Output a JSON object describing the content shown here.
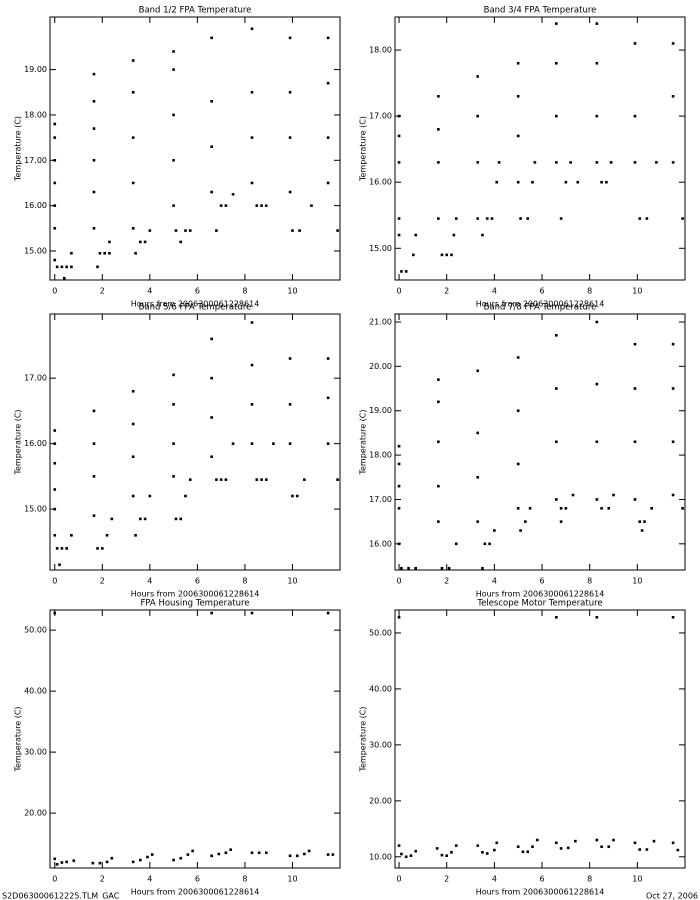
{
  "chart_data": [
    {
      "type": "scatter",
      "title": "Band 1/2 FPA Temperature",
      "xlabel": "Hours from 2006300061228614",
      "ylabel": "Temperature (C)",
      "color": "#000000",
      "xlim": [
        -0.2,
        12
      ],
      "xticks": [
        0,
        2,
        4,
        6,
        8,
        10
      ],
      "ylim": [
        14.36,
        20.16
      ],
      "yticks": [
        {
          "value": 15,
          "label": "15.00"
        },
        {
          "value": 16,
          "label": "16.00"
        },
        {
          "value": 17,
          "label": "17.00"
        },
        {
          "value": 18,
          "label": "18.00"
        },
        {
          "value": 19,
          "label": "19.00"
        }
      ],
      "x": [
        0,
        0,
        0,
        0,
        0,
        0,
        0,
        0.1,
        0.3,
        0.5,
        0.7,
        0.4,
        0.7,
        1.65,
        1.65,
        1.65,
        1.65,
        1.65,
        1.65,
        1.8,
        1.9,
        2.1,
        2.3,
        2.3,
        3.3,
        3.3,
        3.3,
        3.3,
        3.3,
        3.4,
        3.6,
        3.8,
        4.0,
        5,
        5,
        5,
        5,
        5,
        5.1,
        5.3,
        5.5,
        5.7,
        6.6,
        6.6,
        6.6,
        6.6,
        6.8,
        7.0,
        7.2,
        7.5,
        8.3,
        8.3,
        8.3,
        8.3,
        8.5,
        8.7,
        8.9,
        9.9,
        9.9,
        9.9,
        9.9,
        10.0,
        10.3,
        10.8,
        11.5,
        11.5,
        11.5,
        11.5,
        11.9
      ],
      "values": [
        14.8,
        15.5,
        16.0,
        16.5,
        17.0,
        17.5,
        17.8,
        14.65,
        14.65,
        14.65,
        14.65,
        14.4,
        14.95,
        15.5,
        16.3,
        17.0,
        17.7,
        18.3,
        18.9,
        14.65,
        14.95,
        14.95,
        14.95,
        15.2,
        15.5,
        16.5,
        17.5,
        18.5,
        19.2,
        14.95,
        15.2,
        15.2,
        15.45,
        16,
        17,
        18,
        19,
        19.4,
        15.45,
        15.2,
        15.45,
        15.45,
        16.3,
        17.3,
        18.3,
        19.7,
        15.45,
        16.0,
        16.0,
        16.25,
        16.5,
        17.5,
        18.5,
        19.9,
        16,
        16,
        16,
        16.3,
        17.5,
        18.5,
        19.7,
        15.45,
        15.45,
        16.0,
        16.5,
        17.5,
        18.7,
        19.7,
        15.45
      ]
    },
    {
      "type": "scatter",
      "title": "Band 3/4 FPA Temperature",
      "xlabel": "Hours from 2006300061228614",
      "ylabel": "Temperature (C)",
      "color": "#000000",
      "xlim": [
        -0.17,
        12
      ],
      "xticks": [
        0,
        2,
        4,
        6,
        8,
        10
      ],
      "ylim": [
        14.52,
        18.5
      ],
      "yticks": [
        {
          "value": 15,
          "label": "15.00"
        },
        {
          "value": 16,
          "label": "16.00"
        },
        {
          "value": 17,
          "label": "17.00"
        },
        {
          "value": 18,
          "label": "18.00"
        }
      ],
      "x": [
        0,
        0,
        0,
        0,
        0,
        0.1,
        0.3,
        0.6,
        0.7,
        1.65,
        1.65,
        1.65,
        1.65,
        1.8,
        2.0,
        2.2,
        2.3,
        2.4,
        3.3,
        3.3,
        3.3,
        3.3,
        3.5,
        3.7,
        3.9,
        4.1,
        4.2,
        5,
        5,
        5,
        5,
        5.1,
        5.4,
        5.6,
        5.7,
        6.6,
        6.6,
        6.6,
        6.6,
        6.8,
        7.0,
        7.2,
        7.5,
        8.3,
        8.3,
        8.3,
        8.3,
        8.5,
        8.7,
        8.9,
        9.9,
        9.9,
        9.9,
        10.1,
        10.4,
        10.8,
        11.5,
        11.5,
        11.5,
        11.9
      ],
      "values": [
        15.2,
        15.45,
        16.3,
        16.7,
        17.0,
        14.65,
        14.65,
        14.9,
        15.2,
        15.45,
        16.3,
        16.8,
        17.3,
        14.9,
        14.9,
        14.9,
        15.2,
        15.45,
        15.45,
        16.3,
        17.0,
        17.6,
        15.2,
        15.45,
        15.45,
        16.0,
        16.3,
        16.0,
        16.7,
        17.3,
        17.8,
        15.45,
        15.45,
        16.0,
        16.3,
        16.3,
        17.0,
        17.8,
        18.4,
        15.45,
        16.0,
        16.3,
        16.0,
        16.3,
        17.0,
        17.8,
        18.4,
        16.0,
        16.0,
        16.3,
        16.3,
        17.0,
        18.1,
        15.45,
        15.45,
        16.3,
        16.3,
        17.3,
        18.1,
        15.45
      ]
    },
    {
      "type": "scatter",
      "title": "Band 5/6 FPA Temperature",
      "xlabel": "Hours from 2006300061228614",
      "ylabel": "Temperature (C)",
      "color": "#000000",
      "xlim": [
        -0.2,
        12
      ],
      "xticks": [
        0,
        2,
        4,
        6,
        8,
        10
      ],
      "ylim": [
        14.07,
        17.98
      ],
      "yticks": [
        {
          "value": 15,
          "label": "15.00"
        },
        {
          "value": 16,
          "label": "16.00"
        },
        {
          "value": 17,
          "label": "17.00"
        }
      ],
      "x": [
        0,
        0,
        0,
        0,
        0,
        0,
        0.1,
        0.3,
        0.5,
        0.2,
        0.7,
        1.65,
        1.65,
        1.65,
        1.65,
        1.8,
        2.0,
        2.2,
        2.4,
        3.3,
        3.3,
        3.3,
        3.3,
        3.4,
        3.6,
        3.8,
        4.0,
        5,
        5,
        5,
        5,
        5.1,
        5.3,
        5.5,
        5.7,
        6.6,
        6.6,
        6.6,
        6.6,
        6.8,
        7.0,
        7.2,
        7.5,
        8.3,
        8.3,
        8.3,
        8.3,
        8.5,
        8.7,
        8.9,
        9.2,
        9.9,
        9.9,
        9.9,
        10.0,
        10.2,
        10.5,
        11.5,
        11.5,
        11.5,
        11.9
      ],
      "values": [
        14.6,
        15.0,
        15.3,
        15.7,
        16.0,
        16.2,
        14.4,
        14.4,
        14.4,
        14.15,
        14.6,
        14.9,
        15.5,
        16.0,
        16.5,
        14.4,
        14.4,
        14.6,
        14.85,
        15.2,
        15.8,
        16.3,
        16.8,
        14.6,
        14.85,
        14.85,
        15.2,
        15.5,
        16.0,
        16.6,
        17.05,
        14.85,
        14.85,
        15.2,
        15.45,
        15.8,
        16.4,
        17.0,
        17.6,
        15.45,
        15.45,
        15.45,
        16.0,
        16.0,
        16.6,
        17.2,
        17.85,
        15.45,
        15.45,
        15.45,
        16.0,
        16.0,
        16.6,
        17.3,
        15.2,
        15.2,
        15.45,
        16.0,
        16.7,
        17.3,
        15.45
      ]
    },
    {
      "type": "scatter",
      "title": "Band 7/8 FPA Temperature",
      "xlabel": "Hours from 2006300061228614",
      "ylabel": "Temperature (C)",
      "color": "#000000",
      "xlim": [
        -0.17,
        12
      ],
      "xticks": [
        0,
        2,
        4,
        6,
        8,
        10
      ],
      "ylim": [
        15.41,
        21.18
      ],
      "yticks": [
        {
          "value": 16,
          "label": "16.00"
        },
        {
          "value": 17,
          "label": "17.00"
        },
        {
          "value": 18,
          "label": "18.00"
        },
        {
          "value": 19,
          "label": "19.00"
        },
        {
          "value": 20,
          "label": "20.00"
        },
        {
          "value": 21,
          "label": "21.00"
        }
      ],
      "x": [
        0,
        0,
        0,
        0,
        0,
        0.1,
        0.4,
        0.7,
        1.65,
        1.65,
        1.65,
        1.65,
        1.65,
        1.8,
        2.1,
        2.4,
        3.3,
        3.3,
        3.3,
        3.3,
        3.5,
        3.6,
        3.8,
        4.0,
        5,
        5,
        5,
        5,
        5.1,
        5.3,
        5.5,
        6.6,
        6.6,
        6.6,
        6.6,
        6.8,
        7.0,
        7.3,
        6.8,
        8.3,
        8.3,
        8.3,
        8.3,
        8.5,
        8.8,
        9.0,
        9.9,
        9.9,
        9.9,
        9.9,
        10.1,
        10.3,
        10.2,
        10.6,
        11.5,
        11.5,
        11.5,
        11.5,
        11.9
      ],
      "values": [
        16.0,
        16.8,
        17.3,
        17.8,
        18.2,
        15.45,
        15.45,
        15.45,
        16.5,
        17.3,
        18.3,
        19.2,
        19.7,
        15.45,
        15.45,
        16.0,
        16.5,
        17.5,
        18.5,
        19.9,
        15.45,
        16.0,
        16.0,
        16.3,
        16.8,
        17.8,
        19.0,
        20.2,
        16.3,
        16.5,
        16.8,
        17.0,
        18.3,
        19.5,
        20.7,
        16.8,
        16.8,
        17.1,
        16.5,
        17.0,
        18.3,
        19.6,
        21.0,
        16.8,
        16.8,
        17.1,
        17.0,
        18.3,
        19.5,
        20.5,
        16.5,
        16.5,
        16.3,
        16.8,
        17.1,
        18.3,
        19.5,
        20.5,
        16.8
      ]
    },
    {
      "type": "scatter",
      "title": "FPA Housing Temperature",
      "xlabel": "Hours from 2006300061228614",
      "ylabel": "Temperature (C)",
      "color": "#000000",
      "xlim": [
        -0.2,
        12
      ],
      "xticks": [
        0,
        2,
        4,
        6,
        8,
        10
      ],
      "ylim": [
        11.0,
        53.3
      ],
      "yticks": [
        {
          "value": 20,
          "label": "20.00"
        },
        {
          "value": 30,
          "label": "30.00"
        },
        {
          "value": 40,
          "label": "40.00"
        },
        {
          "value": 50,
          "label": "50.00"
        }
      ],
      "x": [
        0,
        0,
        0.1,
        0.3,
        0.5,
        0.8,
        1.6,
        1.9,
        2.2,
        2.4,
        3.3,
        3.6,
        3.9,
        4.1,
        5.0,
        5.3,
        5.6,
        5.8,
        6.6,
        6.6,
        6.9,
        7.2,
        7.4,
        8.3,
        8.3,
        8.6,
        8.9,
        9.9,
        10.2,
        10.5,
        10.7,
        11.5,
        11.5,
        11.7
      ],
      "values": [
        52.8,
        12.5,
        11.6,
        11.9,
        12.0,
        12.2,
        11.8,
        11.8,
        12.0,
        12.6,
        12.0,
        12.3,
        12.8,
        13.2,
        12.3,
        12.6,
        13.2,
        13.8,
        52.8,
        13.0,
        13.3,
        13.5,
        14.0,
        52.8,
        13.5,
        13.5,
        13.5,
        13.0,
        13.0,
        13.3,
        13.8,
        52.8,
        13.2,
        13.2
      ]
    },
    {
      "type": "scatter",
      "title": "Telescope Motor Temperature",
      "xlabel": "Hours from 2006300061228614",
      "ylabel": "Temperature (C)",
      "color": "#000000",
      "xlim": [
        -0.17,
        12
      ],
      "xticks": [
        0,
        2,
        4,
        6,
        8,
        10
      ],
      "ylim": [
        8.0,
        54.1
      ],
      "yticks": [
        {
          "value": 10,
          "label": "10.00"
        },
        {
          "value": 20,
          "label": "20.00"
        },
        {
          "value": 30,
          "label": "30.00"
        },
        {
          "value": 40,
          "label": "40.00"
        },
        {
          "value": 50,
          "label": "50.00"
        }
      ],
      "x": [
        0,
        0,
        0.1,
        0.3,
        0.5,
        0.7,
        1.6,
        1.8,
        2.0,
        2.2,
        2.4,
        3.3,
        3.5,
        3.7,
        4.0,
        4.1,
        5.0,
        5.2,
        5.4,
        5.6,
        5.8,
        6.6,
        6.6,
        6.8,
        7.1,
        7.4,
        8.3,
        8.3,
        8.5,
        8.8,
        9.0,
        9.9,
        10.1,
        10.4,
        10.7,
        11.5,
        11.5,
        11.7
      ],
      "values": [
        52.8,
        12.0,
        10.5,
        10.0,
        10.2,
        11.0,
        11.5,
        10.3,
        10.2,
        10.8,
        12.0,
        12.0,
        10.8,
        10.6,
        11.2,
        12.5,
        11.8,
        10.9,
        10.9,
        11.8,
        13.0,
        52.8,
        12.5,
        11.5,
        11.6,
        12.8,
        52.8,
        13.0,
        11.8,
        11.8,
        13.0,
        12.5,
        11.3,
        11.3,
        12.8,
        52.8,
        12.5,
        11.2
      ]
    }
  ],
  "footer": {
    "left": "S2D063000612225.TLM_GAC",
    "right": "Oct 27, 2006"
  }
}
